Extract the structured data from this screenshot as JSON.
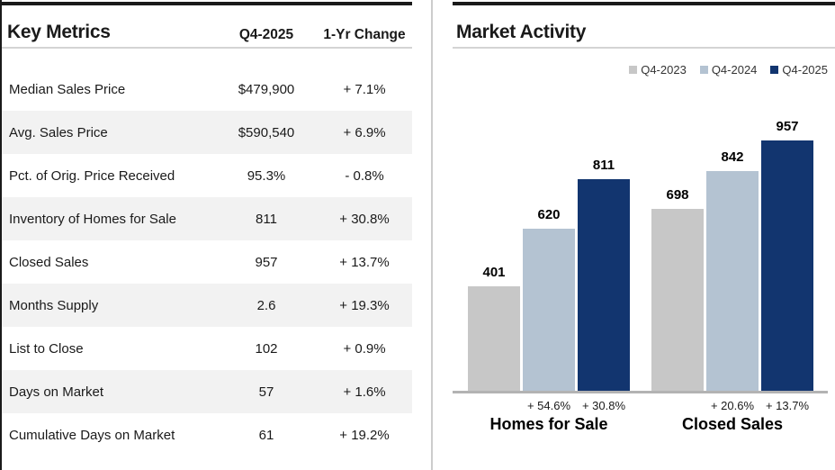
{
  "table": {
    "title": "Key Metrics",
    "columns": [
      "Q4-2025",
      "1-Yr Change"
    ],
    "rows": [
      {
        "label": "Median Sales Price",
        "value": "$479,900",
        "change": "+ 7.1%"
      },
      {
        "label": "Avg. Sales Price",
        "value": "$590,540",
        "change": "+ 6.9%"
      },
      {
        "label": "Pct. of Orig. Price Received",
        "value": "95.3%",
        "change": "- 0.8%"
      },
      {
        "label": "Inventory of Homes for Sale",
        "value": "811",
        "change": "+ 30.8%"
      },
      {
        "label": "Closed Sales",
        "value": "957",
        "change": "+ 13.7%"
      },
      {
        "label": "Months Supply",
        "value": "2.6",
        "change": "+ 19.3%"
      },
      {
        "label": "List to Close",
        "value": "102",
        "change": "+ 0.9%"
      },
      {
        "label": "Days on Market",
        "value": "57",
        "change": "+ 1.6%"
      },
      {
        "label": "Cumulative Days on Market",
        "value": "61",
        "change": "+ 19.2%"
      }
    ]
  },
  "chart_data": {
    "type": "bar",
    "title": "Market Activity",
    "categories": [
      "Homes for Sale",
      "Closed Sales"
    ],
    "series": [
      {
        "name": "Q4-2023",
        "color": "#c7c7c7",
        "values": [
          401,
          698
        ]
      },
      {
        "name": "Q4-2024",
        "color": "#b4c3d2",
        "values": [
          620,
          842
        ]
      },
      {
        "name": "Q4-2025",
        "color": "#12356f",
        "values": [
          811,
          957
        ]
      }
    ],
    "pct_change_labels": [
      [
        null,
        "+ 54.6%",
        "+ 30.8%"
      ],
      [
        null,
        "+ 20.6%",
        "+ 13.7%"
      ]
    ],
    "ylim": [
      0,
      1000
    ],
    "grid": false,
    "legend_position": "top-right"
  },
  "colors": {
    "top_rule": "#1a1a1a",
    "divider": "#cccccc",
    "alt_row_bg": "#f2f2f2",
    "axis_line": "#b3b3b3",
    "text": "#1a1a1a"
  }
}
